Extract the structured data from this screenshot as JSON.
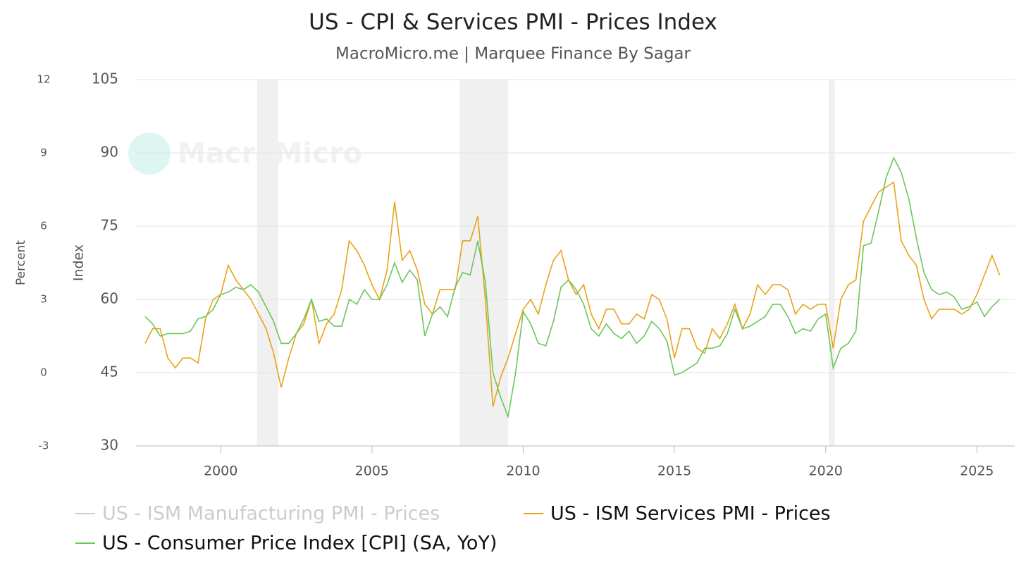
{
  "chart_data": {
    "type": "line",
    "title": "US - CPI & Services PMI - Prices Index",
    "subtitle": "MacroMicro.me | Marquee Finance By Sagar",
    "watermark": "MacroMicro",
    "ylabel": "Index",
    "y2label": "Percent",
    "xlim": [
      1997.2,
      2026.25
    ],
    "xticks": [
      2000,
      2005,
      2010,
      2015,
      2020,
      2025
    ],
    "ylim": [
      30,
      105
    ],
    "yticks": [
      30,
      45,
      60,
      75,
      90,
      105
    ],
    "y2lim": [
      -3,
      12
    ],
    "y2ticks": [
      -3,
      0,
      3,
      6,
      9,
      12
    ],
    "grid": true,
    "shaded_periods": [
      [
        2001.2,
        2001.9
      ],
      [
        2007.9,
        2009.5
      ],
      [
        2020.1,
        2020.3
      ]
    ],
    "x": [
      1997.5,
      1997.75,
      1998,
      1998.25,
      1998.5,
      1998.75,
      1999,
      1999.25,
      1999.5,
      1999.75,
      2000,
      2000.25,
      2000.5,
      2000.75,
      2001,
      2001.25,
      2001.5,
      2001.75,
      2002,
      2002.25,
      2002.5,
      2002.75,
      2003,
      2003.25,
      2003.5,
      2003.75,
      2004,
      2004.25,
      2004.5,
      2004.75,
      2005,
      2005.25,
      2005.5,
      2005.75,
      2006,
      2006.25,
      2006.5,
      2006.75,
      2007,
      2007.25,
      2007.5,
      2007.75,
      2008,
      2008.25,
      2008.5,
      2008.75,
      2009,
      2009.25,
      2009.5,
      2009.75,
      2010,
      2010.25,
      2010.5,
      2010.75,
      2011,
      2011.25,
      2011.5,
      2011.75,
      2012,
      2012.25,
      2012.5,
      2012.75,
      2013,
      2013.25,
      2013.5,
      2013.75,
      2014,
      2014.25,
      2014.5,
      2014.75,
      2015,
      2015.25,
      2015.5,
      2015.75,
      2016,
      2016.25,
      2016.5,
      2016.75,
      2017,
      2017.25,
      2017.5,
      2017.75,
      2018,
      2018.25,
      2018.5,
      2018.75,
      2019,
      2019.25,
      2019.5,
      2019.75,
      2020,
      2020.25,
      2020.5,
      2020.75,
      2021,
      2021.25,
      2021.5,
      2021.75,
      2022,
      2022.25,
      2022.5,
      2022.75,
      2023,
      2023.25,
      2023.5,
      2023.75,
      2024,
      2024.25,
      2024.5,
      2024.75,
      2025,
      2025.25,
      2025.5,
      2025.75
    ],
    "series": [
      {
        "name": "US - ISM Manufacturing PMI - Prices",
        "color": "#cccccc",
        "visible": false
      },
      {
        "name": "US - ISM Services PMI - Prices",
        "color": "#e8a317",
        "values": [
          51,
          54,
          54,
          48,
          46,
          48,
          48,
          47,
          56,
          60,
          61,
          67,
          64,
          62,
          60,
          57,
          54,
          49,
          42,
          48,
          53,
          55,
          60,
          51,
          55,
          57,
          62,
          72,
          70,
          67,
          63,
          60,
          66,
          80,
          68,
          70,
          66,
          59,
          57,
          62,
          62,
          62,
          72,
          72,
          77,
          60,
          38,
          44,
          48,
          53,
          58,
          60,
          57,
          63,
          68,
          70,
          64,
          61,
          63,
          57,
          54,
          58,
          58,
          55,
          55,
          57,
          56,
          61,
          60,
          56,
          48,
          54,
          54,
          50,
          49,
          54,
          52,
          55,
          59,
          54,
          57,
          63,
          61,
          63,
          63,
          62,
          57,
          59,
          58,
          59,
          59,
          50,
          60,
          63,
          64,
          76,
          79,
          82,
          83,
          84,
          72,
          69,
          67,
          60,
          56,
          58,
          58,
          58,
          57,
          58,
          61,
          65,
          69,
          65
        ]
      },
      {
        "name": "US - Consumer Price Index [CPI] (SA, YoY)",
        "color": "#6cc65a",
        "axis": "y2",
        "values": [
          2.3,
          2.0,
          1.5,
          1.6,
          1.6,
          1.6,
          1.7,
          2.2,
          2.3,
          2.6,
          3.2,
          3.3,
          3.5,
          3.4,
          3.6,
          3.3,
          2.7,
          2.1,
          1.2,
          1.2,
          1.6,
          2.2,
          3.0,
          2.1,
          2.2,
          1.9,
          1.9,
          3.0,
          2.8,
          3.4,
          3.0,
          3.0,
          3.6,
          4.5,
          3.7,
          4.2,
          3.8,
          1.5,
          2.4,
          2.7,
          2.3,
          3.5,
          4.1,
          4.0,
          5.4,
          3.7,
          0.0,
          -1.0,
          -1.8,
          0.0,
          2.5,
          2.0,
          1.2,
          1.1,
          2.1,
          3.5,
          3.8,
          3.4,
          2.8,
          1.8,
          1.5,
          2.0,
          1.6,
          1.4,
          1.7,
          1.2,
          1.5,
          2.1,
          1.8,
          1.3,
          -0.1,
          0.0,
          0.2,
          0.4,
          1.0,
          1.0,
          1.1,
          1.6,
          2.6,
          1.8,
          1.9,
          2.1,
          2.3,
          2.8,
          2.8,
          2.3,
          1.6,
          1.8,
          1.7,
          2.2,
          2.4,
          0.2,
          1.0,
          1.2,
          1.7,
          5.2,
          5.3,
          6.6,
          8.0,
          8.8,
          8.2,
          7.1,
          5.5,
          4.1,
          3.4,
          3.2,
          3.3,
          3.1,
          2.6,
          2.7,
          2.9,
          2.3,
          2.7,
          3.0
        ]
      }
    ]
  }
}
